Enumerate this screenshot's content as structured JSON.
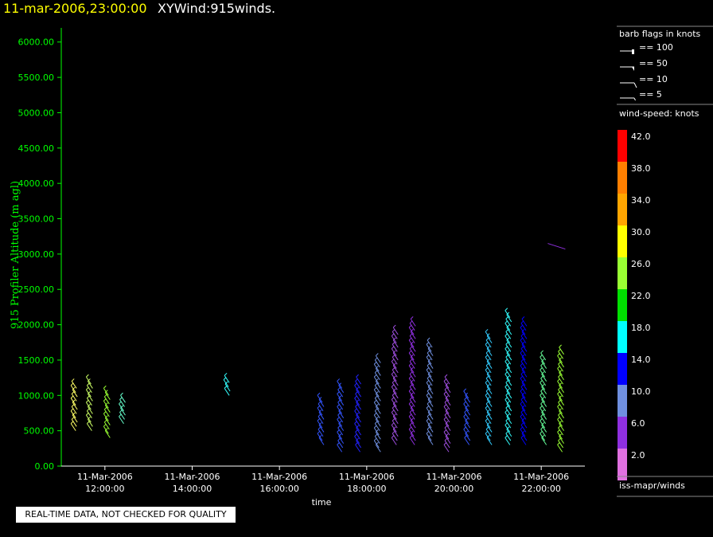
{
  "header": {
    "date": "11-mar-2006,23:00:00",
    "product": "XYWind:915winds."
  },
  "footer": {
    "qc_note": "REAL-TIME DATA, NOT CHECKED FOR QUALITY"
  },
  "sidebar": {
    "barb_title": "barb flags in knots",
    "barb_legend": [
      "== 100",
      "== 50",
      "== 10",
      "== 5"
    ],
    "colorbar_title": "wind-speed: knots",
    "colorbar_labels": [
      "42.0",
      "38.0",
      "34.0",
      "30.0",
      "26.0",
      "22.0",
      "18.0",
      "14.0",
      "10.0",
      "6.0",
      "2.0"
    ],
    "colorbar_colors": [
      "#ff0000",
      "#ff7f00",
      "#ffa500",
      "#ffff00",
      "#99ff33",
      "#00e000",
      "#00ffff",
      "#0000ff",
      "#6f8fdf",
      "#8f2fdf",
      "#df70df"
    ],
    "source": "iss-mapr/winds"
  },
  "chart_data": {
    "type": "scatter",
    "title": "",
    "xlabel": "time",
    "ylabel": "915 Profiler Altitude (m agl)",
    "ylim": [
      0,
      6200
    ],
    "xlim_hours": [
      11.0,
      23.0
    ],
    "y_ticks": [
      "0.00",
      "500.00",
      "1000.00",
      "1500.00",
      "2000.00",
      "2500.00",
      "3000.00",
      "3500.00",
      "4000.00",
      "4500.00",
      "5000.00",
      "5500.00",
      "6000.00"
    ],
    "x_ticks": [
      {
        "date": "11-Mar-2006",
        "time": "12:00:00",
        "hour": 12
      },
      {
        "date": "11-Mar-2006",
        "time": "14:00:00",
        "hour": 14
      },
      {
        "date": "11-Mar-2006",
        "time": "16:00:00",
        "hour": 16
      },
      {
        "date": "11-Mar-2006",
        "time": "18:00:00",
        "hour": 18
      },
      {
        "date": "11-Mar-2006",
        "time": "20:00:00",
        "hour": 20
      },
      {
        "date": "11-Mar-2006",
        "time": "22:00:00",
        "hour": 22
      }
    ],
    "profiles": [
      {
        "hour": 11.35,
        "bottom": 500,
        "top": 1100,
        "color": "#ffff66"
      },
      {
        "hour": 11.7,
        "bottom": 500,
        "top": 1200,
        "color": "#ccff66"
      },
      {
        "hour": 12.1,
        "bottom": 400,
        "top": 1000,
        "color": "#99ff33"
      },
      {
        "hour": 12.45,
        "bottom": 600,
        "top": 900,
        "color": "#66ffcc"
      },
      {
        "hour": 14.85,
        "bottom": 1000,
        "top": 1200,
        "color": "#33ffff"
      },
      {
        "hour": 17.0,
        "bottom": 300,
        "top": 900,
        "color": "#3355ff"
      },
      {
        "hour": 17.45,
        "bottom": 200,
        "top": 1100,
        "color": "#3355ff"
      },
      {
        "hour": 17.85,
        "bottom": 200,
        "top": 1200,
        "color": "#2222ff"
      },
      {
        "hour": 18.3,
        "bottom": 200,
        "top": 1500,
        "color": "#6f8fdf"
      },
      {
        "hour": 18.7,
        "bottom": 300,
        "top": 1900,
        "color": "#9f4fdf"
      },
      {
        "hour": 19.1,
        "bottom": 300,
        "top": 2000,
        "color": "#8f2fdf"
      },
      {
        "hour": 19.5,
        "bottom": 300,
        "top": 1700,
        "color": "#6f8fdf"
      },
      {
        "hour": 19.9,
        "bottom": 200,
        "top": 1200,
        "color": "#9f4fdf"
      },
      {
        "hour": 20.35,
        "bottom": 300,
        "top": 1000,
        "color": "#3355ff"
      },
      {
        "hour": 20.85,
        "bottom": 300,
        "top": 1800,
        "color": "#33ccff"
      },
      {
        "hour": 21.3,
        "bottom": 300,
        "top": 2100,
        "color": "#33ffff"
      },
      {
        "hour": 21.65,
        "bottom": 300,
        "top": 2000,
        "color": "#0000ff"
      },
      {
        "hour": 22.1,
        "bottom": 300,
        "top": 1500,
        "color": "#66ff99"
      },
      {
        "hour": 22.5,
        "bottom": 200,
        "top": 1600,
        "color": "#99ff33"
      }
    ],
    "isolated_barb": {
      "hour": 22.15,
      "altitude": 3150,
      "color": "#8f2fdf"
    }
  }
}
